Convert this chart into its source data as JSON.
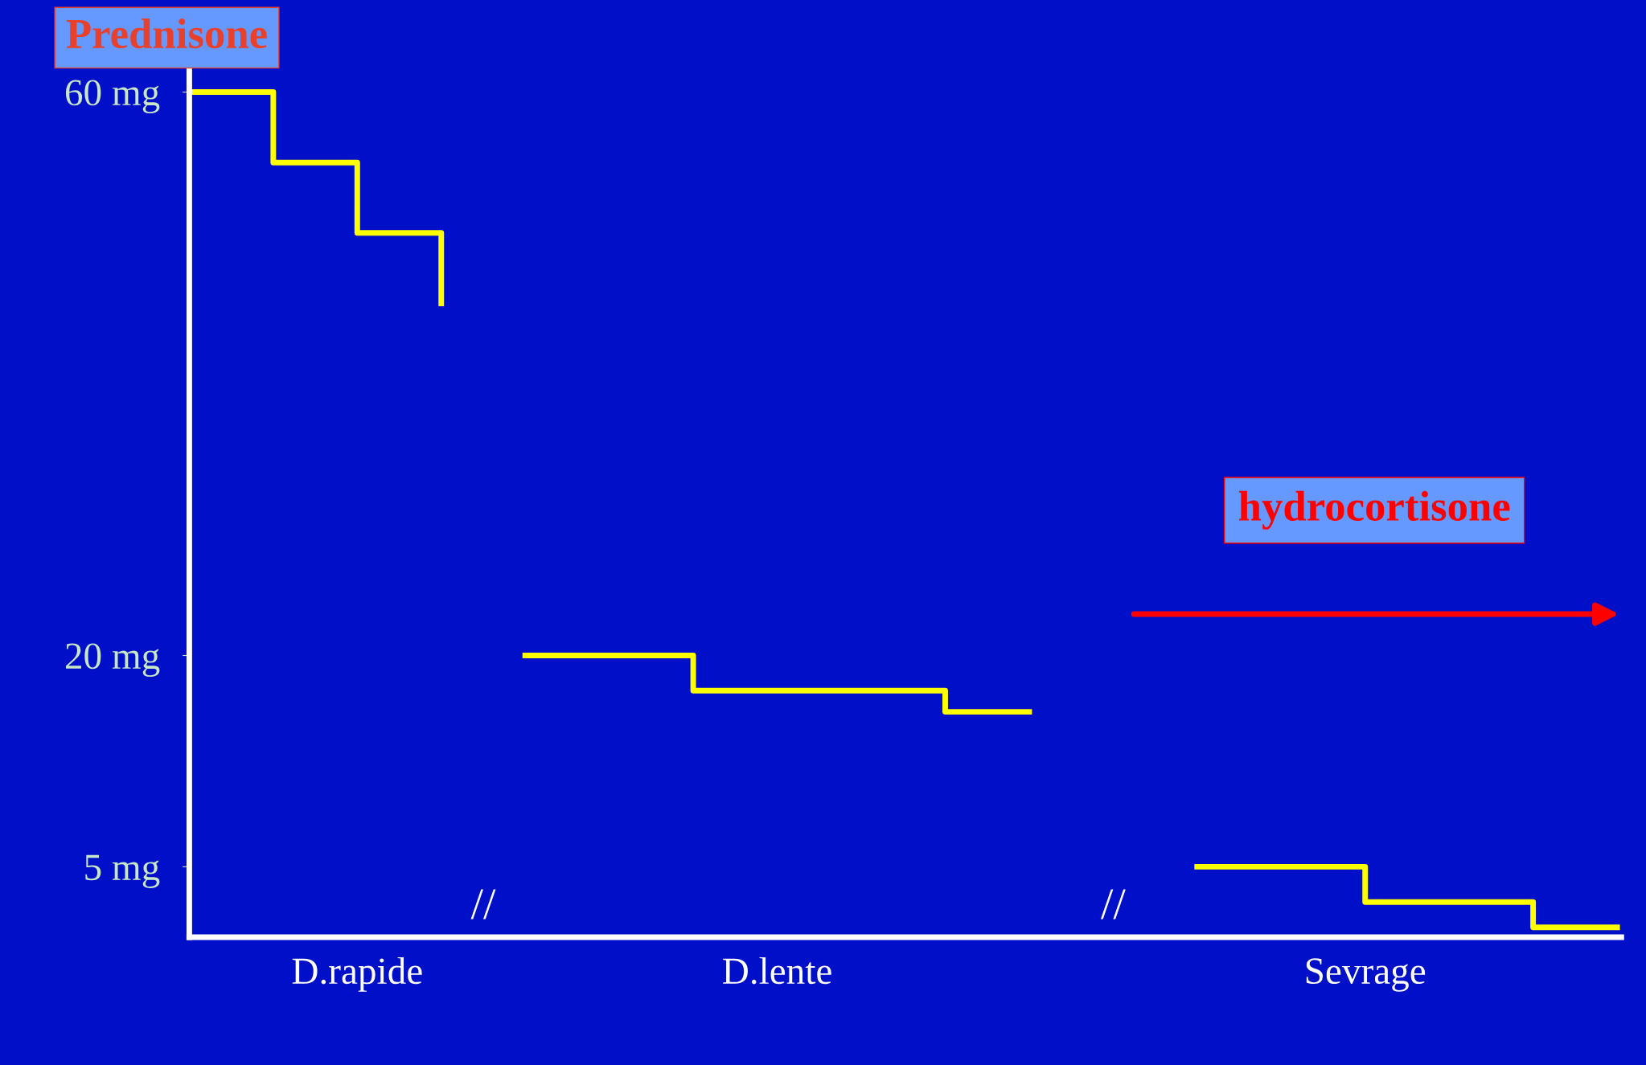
{
  "chart_data": {
    "type": "step",
    "title": "Prednisone",
    "categories": [
      null,
      null,
      "D.rapide",
      null,
      null,
      null,
      null,
      "D.lente",
      null,
      null,
      null,
      null,
      null,
      null,
      "Sevrage",
      null,
      null,
      null
    ],
    "series": [
      {
        "color": "#ffff00",
        "values": [
          60,
          55,
          50,
          45,
          null,
          null,
          null,
          null,
          null,
          null,
          null,
          null,
          null,
          null,
          null,
          null,
          null,
          null
        ]
      },
      {
        "color": "#ffff00",
        "values": [
          null,
          null,
          null,
          null,
          20,
          20,
          17.5,
          17.5,
          17.5,
          16,
          16,
          null,
          null,
          null,
          null,
          null,
          null,
          null
        ]
      },
      {
        "color": "#ffff00",
        "values": [
          null,
          null,
          null,
          null,
          null,
          null,
          null,
          null,
          null,
          null,
          null,
          null,
          5,
          5,
          2.5,
          2.5,
          0.7,
          0.7
        ]
      }
    ],
    "ylim": [
      0,
      62
    ],
    "yticks": [
      {
        "value": 5,
        "label": "5 mg"
      },
      {
        "value": 20,
        "label": "20 mg"
      },
      {
        "value": 60,
        "label": "60 mg"
      }
    ],
    "annotations": [
      "hydrocortisone",
      "//",
      "//"
    ],
    "grid": false,
    "legend": false
  }
}
